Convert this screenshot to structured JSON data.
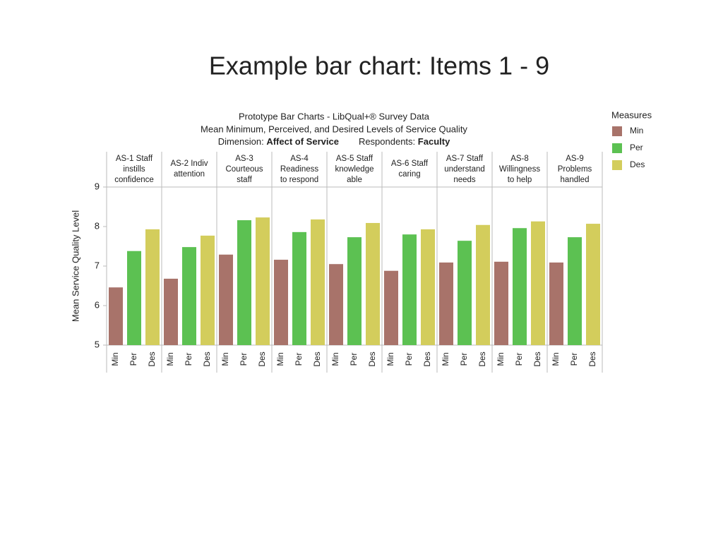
{
  "slide_title": "Example bar chart: Items 1 - 9",
  "chart_data": {
    "type": "bar",
    "title": "Prototype Bar Charts - LibQual+® Survey Data",
    "subtitle": "Mean Minimum, Perceived, and Desired Levels of Service Quality",
    "dimension_label": "Dimension:",
    "dimension": "Affect of Service",
    "respondents_label": "Respondents:",
    "respondents": "Faculty",
    "ylabel": "Mean Service Quality Level",
    "legend_title": "Measures",
    "legend": "right",
    "categories": [
      [
        "AS-1 Staff",
        "instills",
        "confidence"
      ],
      [
        "AS-2 Indiv",
        "attention"
      ],
      [
        "AS-3",
        "Courteous",
        "staff"
      ],
      [
        "AS-4",
        "Readiness",
        "to respond"
      ],
      [
        "AS-5 Staff",
        "knowledge",
        "able"
      ],
      [
        "AS-6 Staff",
        "caring"
      ],
      [
        "AS-7 Staff",
        "understand",
        "needs"
      ],
      [
        "AS-8",
        "Willingness",
        "to help"
      ],
      [
        "AS-9",
        "Problems",
        "handled"
      ]
    ],
    "series": [
      {
        "name": "Min",
        "color": "#a8736a",
        "values": [
          6.46,
          6.68,
          7.29,
          7.16,
          7.05,
          6.88,
          7.09,
          7.11,
          7.09
        ]
      },
      {
        "name": "Per",
        "color": "#5cc152",
        "values": [
          7.38,
          7.48,
          8.16,
          7.86,
          7.73,
          7.8,
          7.64,
          7.96,
          7.73
        ]
      },
      {
        "name": "Des",
        "color": "#d3cd5c",
        "values": [
          7.93,
          7.77,
          8.23,
          8.18,
          8.09,
          7.93,
          8.04,
          8.13,
          8.07
        ]
      }
    ],
    "ylim": [
      5,
      9
    ],
    "yticks": [
      5,
      6,
      7,
      8,
      9
    ]
  }
}
